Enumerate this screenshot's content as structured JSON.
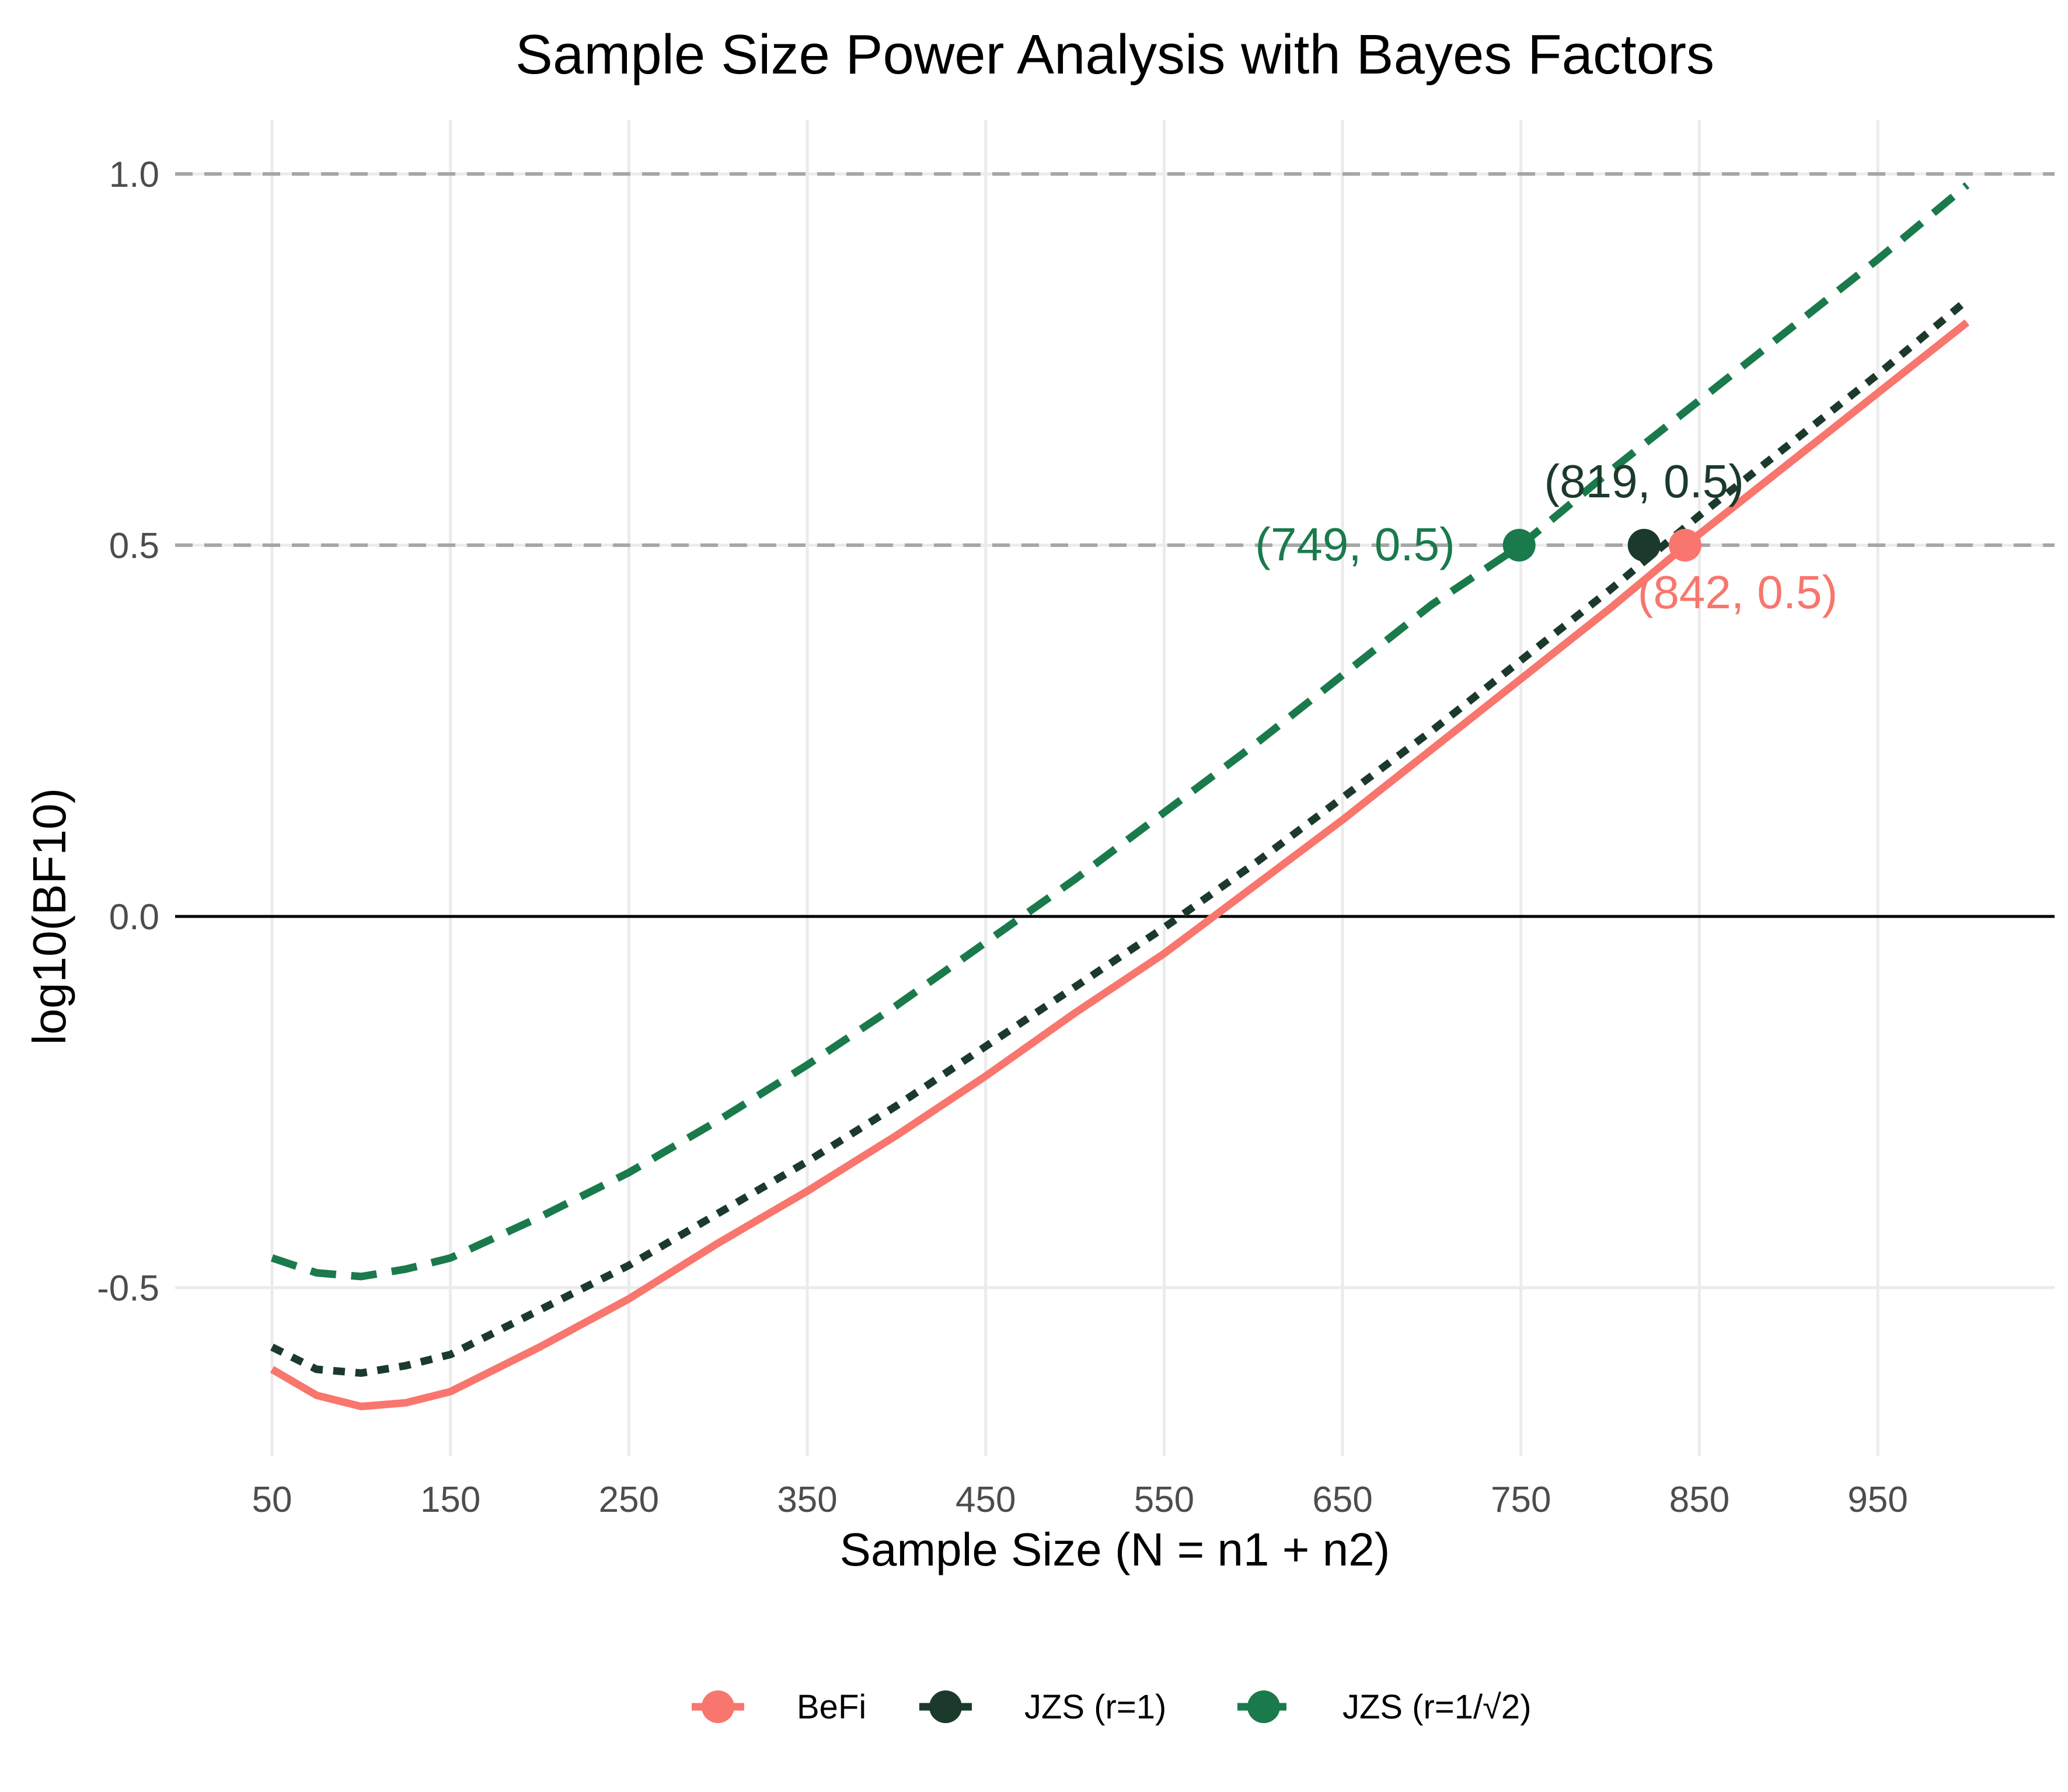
{
  "chart_data": {
    "type": "line",
    "title": "Sample Size Power Analysis with Bayes Factors",
    "xlabel": "Sample Size (N = n1 + n2)",
    "ylabel": "log10(BF10)",
    "xlim": [
      50,
      1000
    ],
    "ylim": [
      -0.72,
      1.07
    ],
    "x_ticks": [
      50,
      150,
      250,
      350,
      450,
      550,
      650,
      750,
      850,
      950
    ],
    "x_tick_labels": [
      "50",
      "150",
      "250",
      "350",
      "450",
      "550",
      "650",
      "750",
      "850",
      "950"
    ],
    "y_ticks": [
      -0.5,
      0.0,
      0.5,
      1.0
    ],
    "y_tick_labels": [
      "-0.5",
      "0.0",
      "0.5",
      "1.0"
    ],
    "reference_lines": [
      {
        "y": 0.5,
        "style": "dashed",
        "color": "#a6a6a6"
      },
      {
        "y": 1.0,
        "style": "dashed",
        "color": "#a6a6a6"
      },
      {
        "y": 0.0,
        "style": "solid",
        "color": "#000000"
      }
    ],
    "grid": true,
    "legend_position": "bottom",
    "series": [
      {
        "name": "BeFi",
        "color": "#f8766d",
        "dash": "solid",
        "x": [
          50,
          75,
          100,
          125,
          150,
          200,
          250,
          300,
          350,
          400,
          450,
          500,
          550,
          600,
          650,
          700,
          750,
          800,
          850,
          900,
          950,
          1000
        ],
        "y": [
          -0.61,
          -0.645,
          -0.66,
          -0.655,
          -0.64,
          -0.58,
          -0.515,
          -0.44,
          -0.37,
          -0.295,
          -0.215,
          -0.13,
          -0.05,
          0.04,
          0.13,
          0.225,
          0.32,
          0.415,
          0.515,
          0.61,
          0.705,
          0.8
        ]
      },
      {
        "name": "JZS (r=1)",
        "color": "#1b3a2b",
        "dash": "dotted",
        "x": [
          50,
          75,
          100,
          125,
          150,
          200,
          250,
          300,
          350,
          400,
          450,
          500,
          550,
          600,
          650,
          700,
          750,
          800,
          850,
          900,
          950,
          1000
        ],
        "y": [
          -0.58,
          -0.61,
          -0.615,
          -0.605,
          -0.59,
          -0.53,
          -0.47,
          -0.4,
          -0.33,
          -0.255,
          -0.175,
          -0.095,
          -0.015,
          0.07,
          0.16,
          0.25,
          0.345,
          0.44,
          0.54,
          0.635,
          0.73,
          0.83
        ]
      },
      {
        "name": "JZS (r=1/√2)",
        "color": "#1a7a4c",
        "dash": "dashed",
        "x": [
          50,
          75,
          100,
          125,
          150,
          200,
          250,
          300,
          350,
          400,
          450,
          500,
          550,
          600,
          650,
          700,
          750,
          800,
          850,
          900,
          950,
          1000
        ],
        "y": [
          -0.46,
          -0.48,
          -0.485,
          -0.475,
          -0.46,
          -0.405,
          -0.345,
          -0.275,
          -0.2,
          -0.12,
          -0.035,
          0.05,
          0.14,
          0.23,
          0.325,
          0.42,
          0.5,
          0.6,
          0.695,
          0.79,
          0.885,
          0.985
        ]
      }
    ],
    "points": [
      {
        "series": "BeFi",
        "x": 842,
        "y": 0.5,
        "label": "(842, 0.5)",
        "color": "#f8766d",
        "label_position": "below"
      },
      {
        "series": "JZS (r=1)",
        "x": 819,
        "y": 0.5,
        "label": "(819, 0.5)",
        "color": "#1b3a2b",
        "label_position": "above"
      },
      {
        "series": "JZS (r=1/√2)",
        "x": 749,
        "y": 0.5,
        "label": "(749, 0.5)",
        "color": "#1a7a4c",
        "label_position": "left"
      }
    ]
  }
}
